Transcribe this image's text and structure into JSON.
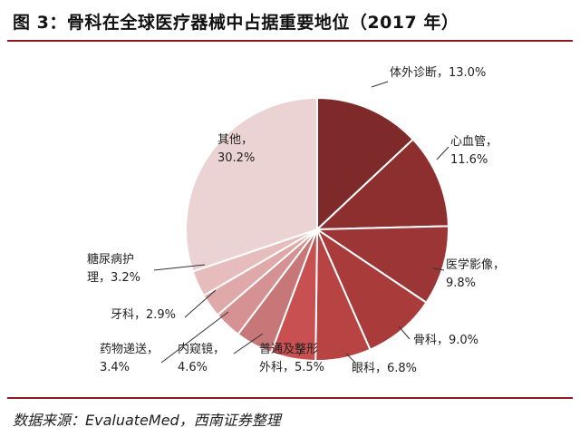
{
  "header": {
    "figure_label": "图 3：",
    "title_text": "骨科在全球医疗器械中占据重要地位（2017 年）"
  },
  "source": {
    "text": "数据来源：EvaluateMed，西南证券整理"
  },
  "chart_data": {
    "type": "pie",
    "title": "骨科在全球医疗器械中占据重要地位（2017 年）",
    "start_angle_deg": 0,
    "direction": "clockwise",
    "unit": "%",
    "slices": [
      {
        "name": "体外诊断",
        "value": 13.0,
        "label_lines": [
          "体外诊断，13.0%"
        ],
        "color": "#7f2a2a"
      },
      {
        "name": "心血管",
        "value": 11.6,
        "label_lines": [
          "心血管，",
          "11.6%"
        ],
        "color": "#8e2f2f"
      },
      {
        "name": "医学影像",
        "value": 9.8,
        "label_lines": [
          "医学影像，",
          "9.8%"
        ],
        "color": "#9c3535"
      },
      {
        "name": "骨科",
        "value": 9.0,
        "label_lines": [
          "骨科，9.0%"
        ],
        "color": "#a93b3b"
      },
      {
        "name": "眼科",
        "value": 6.8,
        "label_lines": [
          "眼科，6.8%"
        ],
        "color": "#b84343"
      },
      {
        "name": "普通及整形外科",
        "value": 5.5,
        "label_lines": [
          "普通及整形",
          "外科，5.5%"
        ],
        "color": "#c95050"
      },
      {
        "name": "内窥镜",
        "value": 4.6,
        "label_lines": [
          "内窥镜，",
          "4.6%"
        ],
        "color": "#c77777"
      },
      {
        "name": "药物递送",
        "value": 3.4,
        "label_lines": [
          "药物递送，",
          "3.4%"
        ],
        "color": "#d69292"
      },
      {
        "name": "牙科",
        "value": 2.9,
        "label_lines": [
          "牙科，2.9%"
        ],
        "color": "#dfa9a9"
      },
      {
        "name": "糖尿病护理",
        "value": 3.2,
        "label_lines": [
          "糖尿病护",
          "理，3.2%"
        ],
        "color": "#e6bcbc"
      },
      {
        "name": "其他",
        "value": 30.2,
        "label_lines": [
          "其他，",
          "30.2%"
        ],
        "color": "#ecd3d3"
      }
    ],
    "legend": "none"
  }
}
